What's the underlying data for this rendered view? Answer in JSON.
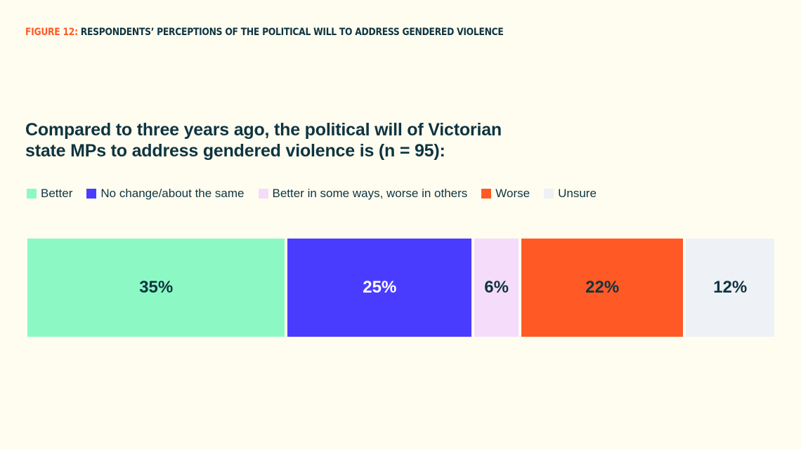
{
  "chart_data": {
    "type": "bar",
    "orientation": "horizontal",
    "stacked": true,
    "figure_label": "FIGURE 12:",
    "title": "RESPONDENTS’ PERCEPTIONS OF THE POLITICAL WILL TO ADDRESS GENDERED VIOLENCE",
    "subtitle": "Compared to three years ago, the political will of Victorian state MPs to address gendered violence is (n = 95):",
    "legend": "top-left",
    "xlim": [
      0,
      100
    ],
    "series": [
      {
        "name": "Better",
        "color": "#8cf9c5",
        "values": [
          35
        ],
        "value_labels": [
          "35%"
        ]
      },
      {
        "name": "No change/about the same",
        "color": "#4a3cff",
        "values": [
          25
        ],
        "value_labels": [
          "25%"
        ]
      },
      {
        "name": "Better in some ways, worse in others",
        "color": "#f5dcfa",
        "values": [
          6
        ],
        "value_labels": [
          "6%"
        ]
      },
      {
        "name": "Worse",
        "color": "#ff5a26",
        "values": [
          22
        ],
        "value_labels": [
          "22%"
        ]
      },
      {
        "name": "Unsure",
        "color": "#eef1f6",
        "values": [
          12
        ],
        "value_labels": [
          "12%"
        ]
      }
    ]
  }
}
